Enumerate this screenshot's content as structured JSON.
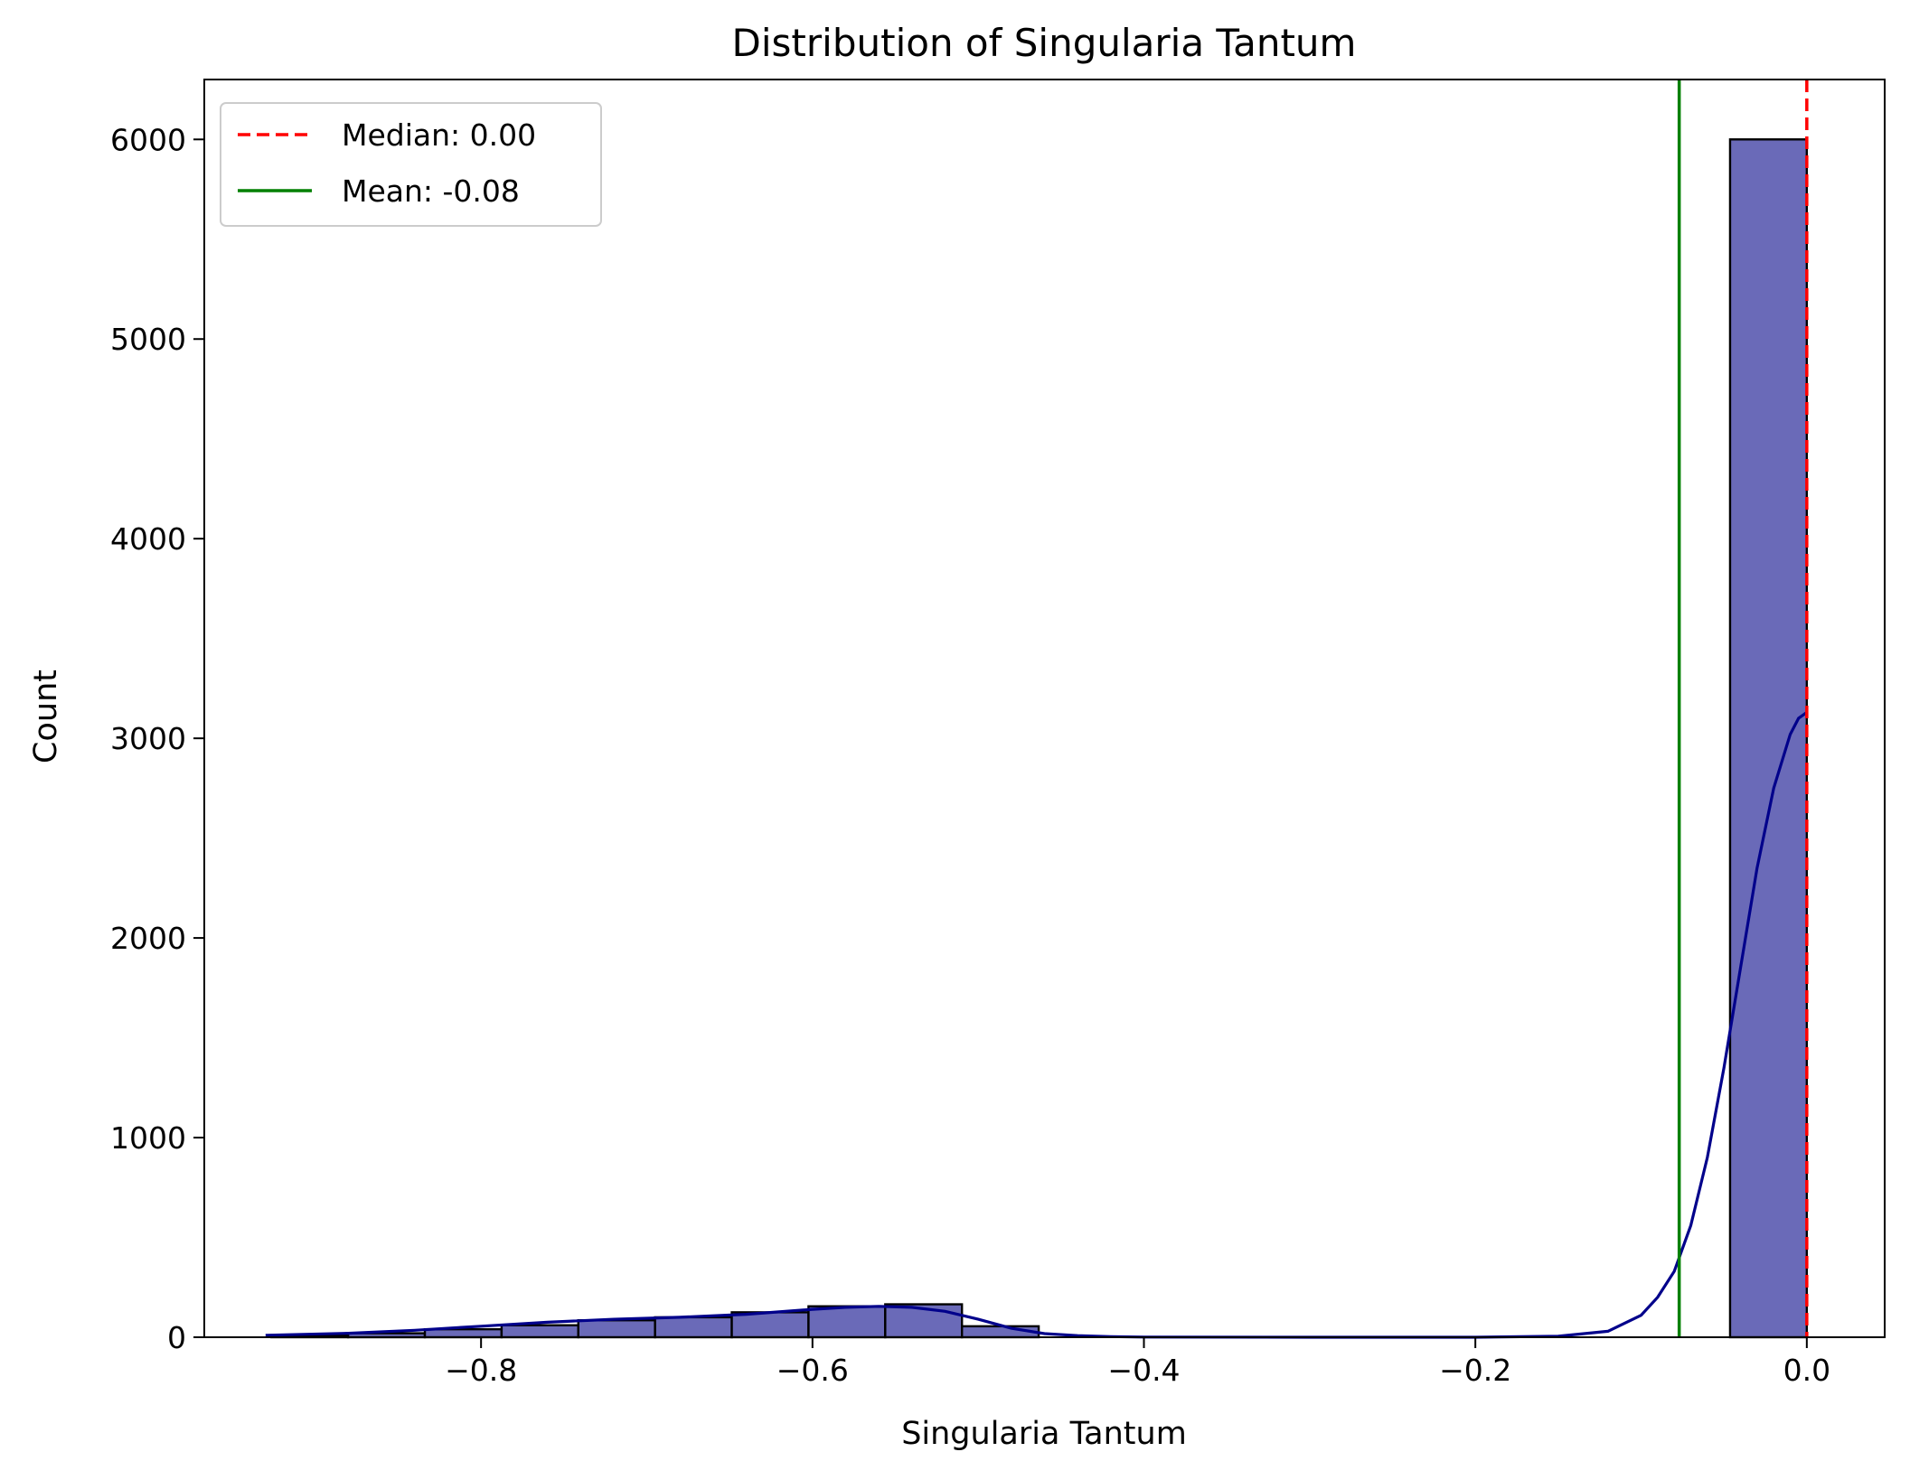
{
  "chart_data": {
    "type": "histogram",
    "title": "Distribution of Singularia Tantum",
    "xlabel": "Singularia Tantum",
    "ylabel": "Count",
    "xlim": [
      -0.967,
      0.047
    ],
    "ylim": [
      0,
      6300
    ],
    "x_ticks": [
      -0.8,
      -0.6,
      -0.4,
      -0.2,
      0.0
    ],
    "x_tick_labels": [
      "−0.8",
      "−0.6",
      "−0.4",
      "−0.2",
      "0.0"
    ],
    "y_ticks": [
      0,
      1000,
      2000,
      3000,
      4000,
      5000,
      6000
    ],
    "y_tick_labels": [
      "0",
      "1000",
      "2000",
      "3000",
      "4000",
      "5000",
      "6000"
    ],
    "bins": [
      {
        "x0": -0.9265,
        "x1": -0.8802,
        "count": 10
      },
      {
        "x0": -0.8802,
        "x1": -0.8339,
        "count": 20
      },
      {
        "x0": -0.8339,
        "x1": -0.7876,
        "count": 40
      },
      {
        "x0": -0.7876,
        "x1": -0.7413,
        "count": 60
      },
      {
        "x0": -0.7413,
        "x1": -0.695,
        "count": 85
      },
      {
        "x0": -0.695,
        "x1": -0.6487,
        "count": 100
      },
      {
        "x0": -0.6487,
        "x1": -0.6024,
        "count": 125
      },
      {
        "x0": -0.6024,
        "x1": -0.5561,
        "count": 155
      },
      {
        "x0": -0.5561,
        "x1": -0.5098,
        "count": 165
      },
      {
        "x0": -0.5098,
        "x1": -0.4635,
        "count": 55
      },
      {
        "x0": -0.0463,
        "x1": 0.0,
        "count": 6000
      }
    ],
    "kde": {
      "x": [
        -0.93,
        -0.88,
        -0.84,
        -0.8,
        -0.76,
        -0.72,
        -0.68,
        -0.64,
        -0.6,
        -0.58,
        -0.56,
        -0.54,
        -0.52,
        -0.5,
        -0.48,
        -0.46,
        -0.44,
        -0.42,
        -0.4,
        -0.3,
        -0.2,
        -0.15,
        -0.12,
        -0.1,
        -0.09,
        -0.08,
        -0.07,
        -0.06,
        -0.05,
        -0.04,
        -0.03,
        -0.02,
        -0.01,
        -0.005,
        0.0
      ],
      "y": [
        10,
        20,
        35,
        55,
        75,
        90,
        100,
        115,
        140,
        150,
        155,
        150,
        130,
        90,
        45,
        18,
        8,
        3,
        1,
        0,
        0,
        5,
        30,
        110,
        200,
        330,
        560,
        900,
        1350,
        1850,
        2350,
        2750,
        3020,
        3100,
        3130
      ]
    },
    "median": {
      "value": 0.0,
      "label": "Median: 0.00",
      "color": "#ff0000",
      "style": "dashed"
    },
    "mean": {
      "value": -0.077,
      "label": "Mean: -0.08",
      "color": "#008000",
      "style": "solid"
    },
    "bar_color": "#6a6ab8",
    "bar_edge_color": "#000000",
    "kde_color": "#00008b",
    "legend": {
      "position": "upper-left",
      "entries": [
        "Median: 0.00",
        "Mean: -0.08"
      ]
    },
    "grid": false
  }
}
